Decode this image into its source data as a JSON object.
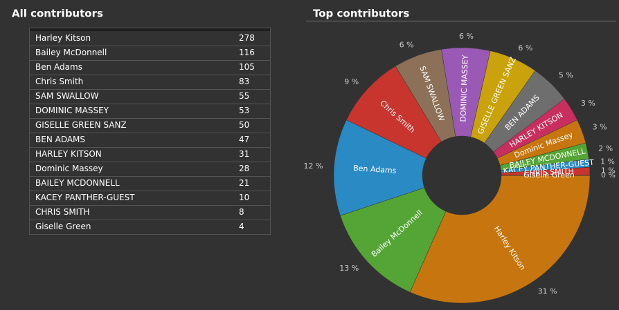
{
  "table": {
    "title": "All contributors",
    "rows": [
      [
        "Harley Kitson",
        278
      ],
      [
        "Bailey McDonnell",
        116
      ],
      [
        "Ben Adams",
        105
      ],
      [
        "Chris Smith",
        83
      ],
      [
        "SAM SWALLOW",
        55
      ],
      [
        "DOMINIC MASSEY",
        53
      ],
      [
        "GISELLE GREEN SANZ",
        50
      ],
      [
        "BEN ADAMS",
        47
      ],
      [
        "HARLEY KITSON",
        31
      ],
      [
        "Dominic Massey",
        28
      ],
      [
        "BAILEY MCDONNELL",
        21
      ],
      [
        "KACEY PANTHER-GUEST",
        10
      ],
      [
        "CHRIS SMITH",
        8
      ],
      [
        "Giselle Green",
        4
      ]
    ]
  },
  "chart_data": {
    "type": "pie",
    "title": "Top contributors",
    "categories": [
      "Harley Kitson",
      "Bailey McDonnell",
      "Ben Adams",
      "Chris Smith",
      "SAM SWALLOW",
      "DOMINIC MASSEY",
      "GISELLE GREEN SANZ",
      "BEN ADAMS",
      "HARLEY KITSON",
      "Dominic Massey",
      "BAILEY MCDONNELL",
      "KACEY PANTHER-GUEST",
      "CHRIS SMITH",
      "Giselle Green"
    ],
    "values": [
      31,
      13,
      12,
      9,
      6,
      6,
      6,
      5,
      3,
      3,
      2,
      1,
      1,
      0
    ],
    "value_labels": [
      "31 %",
      "13 %",
      "12 %",
      "9 %",
      "6 %",
      "6 %",
      "6 %",
      "5 %",
      "3 %",
      "3 %",
      "2 %",
      "1 %",
      "1 %",
      "0 %"
    ],
    "colors": [
      "#c7760f",
      "#55a536",
      "#2a8ac4",
      "#c8352f",
      "#8c7057",
      "#9b59b6",
      "#c9a20c",
      "#6e6e6e",
      "#c82f5e",
      "#c7760f",
      "#55a536",
      "#2a8ac4",
      "#c8352f",
      "#8c7057"
    ]
  }
}
